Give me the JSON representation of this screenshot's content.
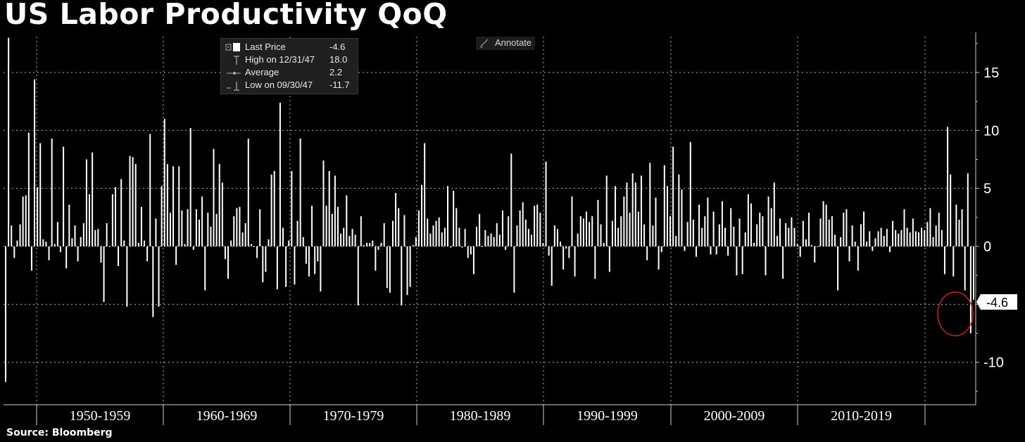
{
  "title": "US Labor Productivity QoQ",
  "source": "Source: Bloomberg",
  "annotate_label": "Annotate",
  "legend": [
    {
      "label": "Last Price",
      "value": "-4.6",
      "icon": "last-price-square-icon"
    },
    {
      "label": "High on 12/31/47",
      "value": "18.0",
      "icon": "high-marker-icon"
    },
    {
      "label": "Average",
      "value": "2.2",
      "icon": "average-marker-icon"
    },
    {
      "label": "Low on 09/30/47",
      "value": "-11.7",
      "icon": "low-marker-icon"
    }
  ],
  "colors": {
    "background": "#000000",
    "bars": "#ffffff",
    "grid": "#b5b5b5",
    "highlight_circle": "#d21f1f"
  },
  "chart_data": {
    "type": "bar",
    "title": "US Labor Productivity QoQ",
    "x_tick_labels": [
      "1950-1959",
      "1960-1969",
      "1970-1979",
      "1980-1989",
      "1990-1999",
      "2000-2009",
      "2010-2019"
    ],
    "y_ticks": [
      15,
      10,
      5,
      0,
      -10
    ],
    "ylim": [
      -13.5,
      18.3
    ],
    "grid": true,
    "y_axis_side": "right",
    "last_value_label": "-4.6",
    "frequency": "quarterly",
    "start": "1947 Q3",
    "end": "2020 Q2",
    "values": [
      -11.7,
      18.0,
      1.8,
      -1.0,
      0.5,
      1.9,
      4.3,
      4.4,
      9.8,
      -2.1,
      14.4,
      5.1,
      8.9,
      0.6,
      0.4,
      -1.2,
      9.3,
      0.2,
      2.1,
      -0.5,
      8.6,
      -1.9,
      3.6,
      0.7,
      1.8,
      -1.3,
      0.8,
      2.0,
      7.5,
      4.5,
      8.1,
      1.4,
      1.5,
      -1.4,
      -4.8,
      2.0,
      0.0,
      4.5,
      5.1,
      -1.7,
      5.8,
      0.5,
      -5.2,
      7.8,
      7.7,
      7.1,
      0.3,
      3.4,
      0.5,
      -1.3,
      9.7,
      -6.1,
      2.4,
      -5.2,
      5.2,
      11.0,
      7.1,
      2.9,
      6.9,
      -1.6,
      6.9,
      3.1,
      0.2,
      3.2,
      10.2,
      -0.3,
      3.2,
      2.3,
      4.3,
      -3.8,
      2.9,
      1.7,
      8.4,
      2.8,
      7.1,
      5.5,
      -1.1,
      -2.8,
      0.5,
      2.6,
      3.3,
      3.4,
      1.2,
      2.0,
      9.3,
      0.2,
      0.0,
      -1.0,
      3.2,
      -3.1,
      -2.2,
      0.6,
      6.2,
      6.5,
      -3.7,
      12.4,
      1.6,
      -3.5,
      0.5,
      6.5,
      -3.3,
      2.2,
      9.3,
      0.8,
      -1.5,
      -2.6,
      3.5,
      -2.4,
      -1.3,
      -3.9,
      7.4,
      3.5,
      6.5,
      2.8,
      6.1,
      3.4,
      1.1,
      1.6,
      4.4,
      0.9,
      1.5,
      1.0,
      -5.1,
      2.6,
      0.1,
      0.3,
      0.3,
      0.5,
      -2.1,
      -0.3,
      0.3,
      2.0,
      -3.6,
      -4.0,
      2.2,
      4.6,
      3.3,
      -5.1,
      2.7,
      -4.2,
      -3.5,
      0.1,
      0.8,
      3.1,
      5.3,
      8.9,
      2.4,
      1.1,
      1.8,
      2.2,
      2.5,
      1.2,
      1.6,
      5.2,
      -0.1,
      4.8,
      3.3,
      1.6,
      -0.1,
      1.5,
      -1.0,
      -0.7,
      -2.4,
      1.7,
      2.8,
      0.0,
      1.4,
      0.9,
      1.1,
      0.8,
      2.0,
      1.0,
      3.1,
      -0.3,
      2.6,
      8.0,
      -4.0,
      1.8,
      3.1,
      3.8,
      2.3,
      1.5,
      1.0,
      3.5,
      3.6,
      2.9,
      0.3,
      7.3,
      -0.8,
      -3.4,
      1.8,
      1.5,
      0.4,
      -2.0,
      -0.2,
      -1.0,
      4.3,
      -2.6,
      1.1,
      2.6,
      2.4,
      3.0,
      2.1,
      2.6,
      -2.8,
      4.0,
      1.9,
      0.3,
      6.1,
      -2.2,
      2.2,
      5.2,
      1.6,
      2.6,
      4.3,
      5.5,
      2.9,
      6.3,
      5.5,
      3.0,
      6.1,
      1.9,
      -1.2,
      7.2,
      1.8,
      4.2,
      -2.0,
      -0.5,
      7.0,
      5.2,
      2.6,
      8.6,
      0.9,
      6.2,
      4.9,
      -0.4,
      2.1,
      9.0,
      2.3,
      -0.9,
      3.6,
      1.6,
      2.6,
      4.2,
      -0.7,
      3.0,
      -0.7,
      1.9,
      3.9,
      1.6,
      -0.8,
      3.3,
      1.7,
      -2.5,
      2.4,
      -2.4,
      1.2,
      4.5,
      3.7,
      0.3,
      1.9,
      2.9,
      2.6,
      -2.5,
      4.3,
      3.3,
      5.5,
      0.9,
      2.4,
      -2.8,
      2.0,
      1.6,
      2.5,
      1.6,
      0.2,
      -0.9,
      2.2,
      0.6,
      2.9,
      0.1,
      -1.4,
      0.0,
      2.4,
      3.9,
      3.6,
      2.3,
      2.6,
      1.0,
      -3.8,
      0.8,
      2.9,
      3.2,
      -1.3,
      1.8,
      0.4,
      -2.1,
      1.9,
      3.0,
      0.4,
      1.3,
      -0.4,
      0.7,
      1.3,
      1.6,
      0.9,
      1.5,
      -0.5,
      2.2,
      1.4,
      1.1,
      1.4,
      3.2,
      1.6,
      1.2,
      2.4,
      1.3,
      1.2,
      1.6,
      1.4,
      2.1,
      3.3,
      0.8,
      1.8,
      2.9,
      1.4,
      -2.4,
      10.3,
      6.2,
      -2.6,
      3.6,
      2.3,
      3.2,
      -3.8,
      6.3,
      -7.5,
      -4.6
    ]
  }
}
